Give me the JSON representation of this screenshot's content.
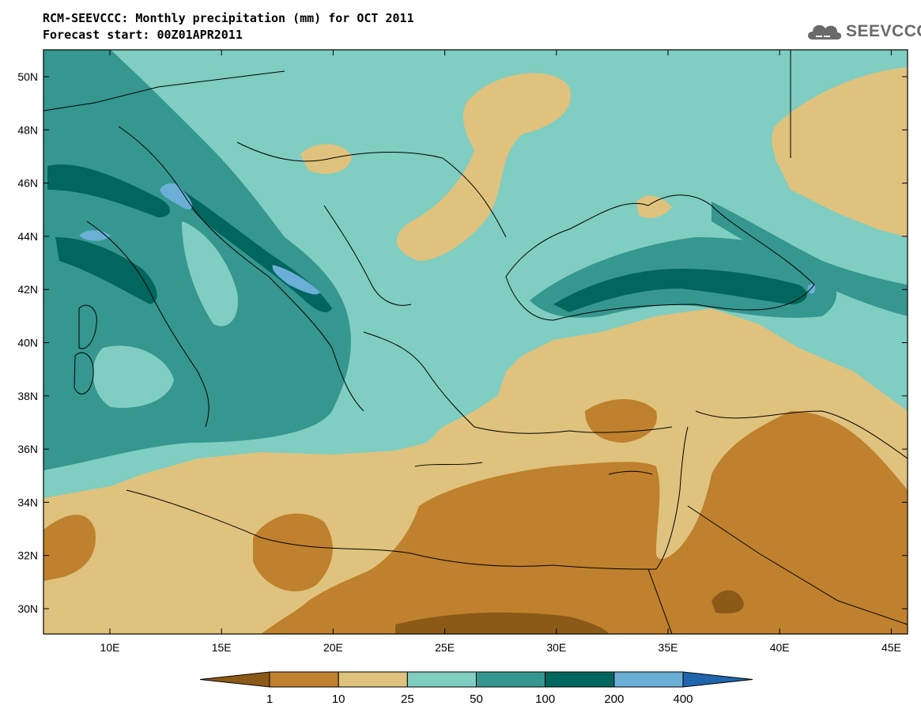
{
  "title_line1": "RCM-SEEVCCC: Monthly precipitation (mm) for OCT 2011",
  "title_line2": "Forecast start: 00Z01APR2011",
  "logo_text": "SEEVCCC",
  "lat_labels": [
    "50N",
    "48N",
    "46N",
    "44N",
    "42N",
    "40N",
    "38N",
    "36N",
    "34N",
    "32N",
    "30N"
  ],
  "lon_labels": [
    "10E",
    "15E",
    "20E",
    "25E",
    "30E",
    "35E",
    "40E",
    "45E"
  ],
  "colorbar": {
    "levels": [
      "1",
      "10",
      "25",
      "50",
      "100",
      "200",
      "400"
    ],
    "colors": [
      "#8c5a17",
      "#bf812d",
      "#dfc27d",
      "#80cdc1",
      "#35978f",
      "#01665e",
      "#6baed6",
      "#2166ac"
    ]
  },
  "palette": {
    "c_lt1": "#8c5a17",
    "c_1_10": "#bf812d",
    "c_10_25": "#dfc27d",
    "c_25_50": "#80cdc1",
    "c_50_100": "#35978f",
    "c_100_200": "#01665e",
    "c_200_400": "#6baed6"
  }
}
